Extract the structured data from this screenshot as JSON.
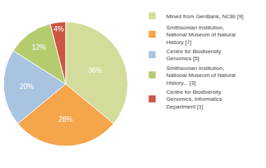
{
  "chart_data": {
    "type": "pie",
    "categories": [
      "Mined from GenBank, NCBI [9]",
      "Smithsonian Institution,\nNational Museum of Natural\nHistory [7]",
      "Centre for Biodiversity\nGenomics [5]",
      "Smithsonian Institution,\nNational Museum of Natural\nHistory... [3]",
      "Centre for Biodiversity\nGenomics, Informatics\nDepartment [1]"
    ],
    "values": [
      36,
      28,
      20,
      12,
      4
    ],
    "value_labels": [
      "36%",
      "28%",
      "20%",
      "12%",
      "4%"
    ],
    "colors": [
      "#d4dc9b",
      "#f5a54a",
      "#a8c4e0",
      "#b5cc6e",
      "#cc5544"
    ],
    "data_labels": true,
    "legend": "right"
  }
}
